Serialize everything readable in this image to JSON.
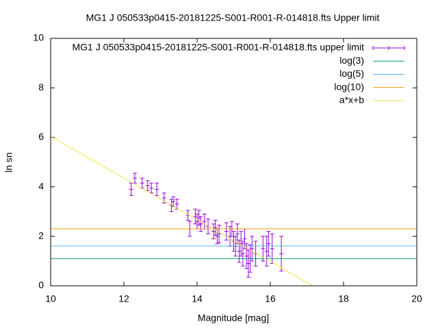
{
  "chart_data": {
    "type": "errorbar",
    "title": "MG1 J 050533p0415-20181225-S001-R001-R-014818.fts Upper limit",
    "xlabel": "Magnitude [mag]",
    "ylabel": "ln sn",
    "xlim": [
      10,
      20
    ],
    "xticks": [
      10,
      12,
      14,
      16,
      18,
      20
    ],
    "ylim": [
      0,
      10
    ],
    "yticks": [
      0,
      2,
      4,
      6,
      8,
      10
    ],
    "legend": "top-right",
    "series": [
      {
        "name": "MG1 J 050533p0415-20181225-S001-R001-R-014818.fts upper limit",
        "kind": "errorbar",
        "color": "#9400d3",
        "x": [
          12.2,
          12.3,
          12.5,
          12.65,
          12.75,
          12.9,
          13.1,
          13.3,
          13.35,
          13.45,
          13.75,
          13.8,
          13.95,
          14.0,
          14.05,
          14.1,
          14.2,
          14.3,
          14.45,
          14.5,
          14.55,
          14.6,
          14.8,
          14.9,
          14.95,
          15.0,
          15.05,
          15.1,
          15.15,
          15.2,
          15.25,
          15.3,
          15.35,
          15.4,
          15.45,
          15.5,
          15.6,
          15.8,
          15.9,
          15.95,
          16.05,
          16.3
        ],
        "values": [
          3.9,
          4.35,
          4.15,
          4.05,
          3.95,
          3.9,
          3.55,
          3.25,
          3.4,
          3.3,
          2.85,
          2.3,
          2.8,
          2.6,
          2.75,
          2.5,
          2.6,
          2.4,
          2.2,
          2.35,
          2.0,
          2.1,
          2.2,
          2.0,
          2.3,
          1.8,
          1.6,
          2.1,
          1.4,
          1.7,
          1.3,
          1.9,
          1.2,
          0.9,
          1.1,
          1.5,
          1.3,
          1.5,
          1.4,
          1.7,
          1.5,
          1.3
        ],
        "errors": [
          0.25,
          0.2,
          0.2,
          0.2,
          0.2,
          0.25,
          0.2,
          0.25,
          0.2,
          0.2,
          0.2,
          0.3,
          0.3,
          0.3,
          0.3,
          0.3,
          0.3,
          0.3,
          0.3,
          0.3,
          0.3,
          0.35,
          0.35,
          0.4,
          0.3,
          0.4,
          0.4,
          0.4,
          0.45,
          0.5,
          0.5,
          0.4,
          0.5,
          0.55,
          0.55,
          0.5,
          0.5,
          0.5,
          0.6,
          0.5,
          0.6,
          0.7
        ]
      },
      {
        "name": "log(3)",
        "kind": "line",
        "color": "#009e73",
        "x": [
          10,
          20
        ],
        "values": [
          1.0986,
          1.0986
        ]
      },
      {
        "name": "log(5)",
        "kind": "line",
        "color": "#56b4e9",
        "x": [
          10,
          20
        ],
        "values": [
          1.6094,
          1.6094
        ]
      },
      {
        "name": "log(10)",
        "kind": "line",
        "color": "#e69f00",
        "x": [
          10,
          20
        ],
        "values": [
          2.3026,
          2.3026
        ]
      },
      {
        "name": "a*x+b",
        "kind": "line",
        "color": "#f0e442",
        "x": [
          10,
          17.16
        ],
        "values": [
          6.04,
          0
        ]
      }
    ]
  }
}
